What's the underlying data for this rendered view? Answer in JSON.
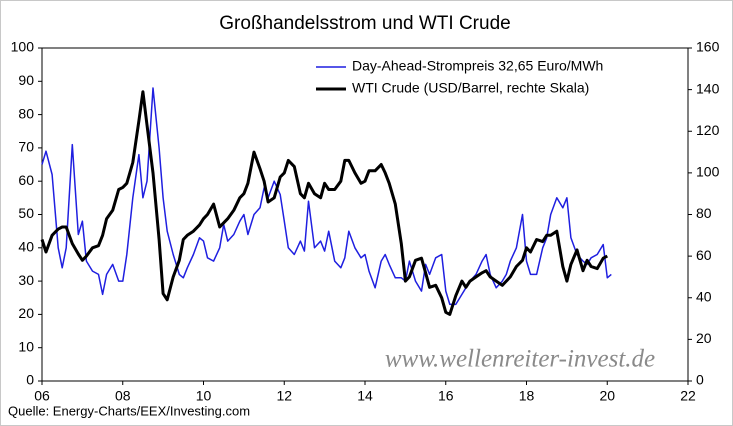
{
  "chart_data": {
    "type": "line",
    "title": "Großhandelsstrom und WTI Crude",
    "source": "Quelle: Energy-Charts/EEX/Investing.com",
    "watermark": "www.wellenreiter-invest.de",
    "xlim": [
      2006,
      2022
    ],
    "xticks": [
      {
        "value": 2006,
        "label": "06"
      },
      {
        "value": 2008,
        "label": "08"
      },
      {
        "value": 2010,
        "label": "10"
      },
      {
        "value": 2012,
        "label": "12"
      },
      {
        "value": 2014,
        "label": "14"
      },
      {
        "value": 2016,
        "label": "16"
      },
      {
        "value": 2018,
        "label": "18"
      },
      {
        "value": 2020,
        "label": "20"
      },
      {
        "value": 2022,
        "label": "22"
      }
    ],
    "ylim": [
      0,
      100
    ],
    "yticks": [
      0,
      10,
      20,
      30,
      40,
      50,
      60,
      70,
      80,
      90,
      100
    ],
    "y2lim": [
      0,
      160
    ],
    "y2ticks": [
      0,
      20,
      40,
      60,
      80,
      100,
      120,
      140,
      160
    ],
    "grid": false,
    "legend": "top-right",
    "series": [
      {
        "name": "Day-Ahead-Strompreis 32,65 Euro/MWh",
        "color": "#1f1fe0",
        "width": 1.5,
        "x": [
          2006.0,
          2006.1,
          2006.25,
          2006.4,
          2006.5,
          2006.6,
          2006.75,
          2006.9,
          2007.0,
          2007.1,
          2007.25,
          2007.4,
          2007.5,
          2007.6,
          2007.75,
          2007.9,
          2008.0,
          2008.1,
          2008.25,
          2008.4,
          2008.5,
          2008.6,
          2008.75,
          2008.9,
          2009.0,
          2009.1,
          2009.25,
          2009.4,
          2009.5,
          2009.6,
          2009.75,
          2009.9,
          2010.0,
          2010.1,
          2010.25,
          2010.4,
          2010.5,
          2010.6,
          2010.75,
          2010.9,
          2011.0,
          2011.1,
          2011.25,
          2011.4,
          2011.5,
          2011.6,
          2011.75,
          2011.9,
          2012.0,
          2012.1,
          2012.25,
          2012.4,
          2012.5,
          2012.6,
          2012.75,
          2012.9,
          2013.0,
          2013.1,
          2013.25,
          2013.4,
          2013.5,
          2013.6,
          2013.75,
          2013.9,
          2014.0,
          2014.1,
          2014.25,
          2014.4,
          2014.5,
          2014.6,
          2014.75,
          2014.9,
          2015.0,
          2015.1,
          2015.25,
          2015.4,
          2015.5,
          2015.6,
          2015.75,
          2015.9,
          2016.0,
          2016.1,
          2016.25,
          2016.4,
          2016.5,
          2016.6,
          2016.75,
          2016.9,
          2017.0,
          2017.1,
          2017.25,
          2017.4,
          2017.5,
          2017.6,
          2017.75,
          2017.9,
          2018.0,
          2018.1,
          2018.25,
          2018.4,
          2018.5,
          2018.6,
          2018.75,
          2018.9,
          2019.0,
          2019.1,
          2019.25,
          2019.4,
          2019.5,
          2019.6,
          2019.75,
          2019.9,
          2020.0,
          2020.1
        ],
        "values": [
          65,
          69,
          62,
          40,
          34,
          40,
          71,
          44,
          48,
          36,
          33,
          32,
          26,
          32,
          35,
          30,
          30,
          38,
          55,
          68,
          55,
          60,
          88,
          70,
          55,
          45,
          38,
          32,
          31,
          34,
          38,
          43,
          42,
          37,
          36,
          40,
          47,
          42,
          44,
          48,
          50,
          44,
          50,
          52,
          58,
          55,
          60,
          56,
          48,
          40,
          38,
          42,
          39,
          54,
          40,
          42,
          39,
          45,
          36,
          34,
          37,
          45,
          40,
          37,
          38,
          33,
          28,
          36,
          38,
          35,
          31,
          31,
          30,
          36,
          30,
          27,
          35,
          32,
          37,
          38,
          27,
          23,
          23,
          26,
          28,
          30,
          32,
          36,
          38,
          32,
          28,
          30,
          32,
          36,
          40,
          50,
          36,
          32,
          32,
          40,
          43,
          50,
          55,
          52,
          55,
          43,
          38,
          36,
          35,
          37,
          38,
          41,
          31,
          32
        ]
      },
      {
        "name": "WTI Crude (USD/Barrel, rechte Skala)",
        "color": "#000000",
        "width": 3,
        "axis": "y2",
        "x": [
          2006.0,
          2006.1,
          2006.25,
          2006.4,
          2006.5,
          2006.6,
          2006.75,
          2006.9,
          2007.0,
          2007.1,
          2007.25,
          2007.4,
          2007.5,
          2007.6,
          2007.75,
          2007.9,
          2008.0,
          2008.1,
          2008.25,
          2008.4,
          2008.5,
          2008.6,
          2008.75,
          2008.9,
          2009.0,
          2009.1,
          2009.25,
          2009.4,
          2009.5,
          2009.6,
          2009.75,
          2009.9,
          2010.0,
          2010.1,
          2010.25,
          2010.4,
          2010.5,
          2010.6,
          2010.75,
          2010.9,
          2011.0,
          2011.1,
          2011.25,
          2011.4,
          2011.5,
          2011.6,
          2011.75,
          2011.9,
          2012.0,
          2012.1,
          2012.25,
          2012.4,
          2012.5,
          2012.6,
          2012.75,
          2012.9,
          2013.0,
          2013.1,
          2013.25,
          2013.4,
          2013.5,
          2013.6,
          2013.75,
          2013.9,
          2014.0,
          2014.1,
          2014.25,
          2014.4,
          2014.5,
          2014.6,
          2014.75,
          2014.9,
          2015.0,
          2015.1,
          2015.25,
          2015.4,
          2015.5,
          2015.6,
          2015.75,
          2015.9,
          2016.0,
          2016.1,
          2016.25,
          2016.4,
          2016.5,
          2016.6,
          2016.75,
          2016.9,
          2017.0,
          2017.1,
          2017.25,
          2017.4,
          2017.5,
          2017.6,
          2017.75,
          2017.9,
          2018.0,
          2018.1,
          2018.25,
          2018.4,
          2018.5,
          2018.6,
          2018.75,
          2018.9,
          2019.0,
          2019.1,
          2019.25,
          2019.4,
          2019.5,
          2019.6,
          2019.75,
          2019.9,
          2020.0
        ],
        "values": [
          68,
          62,
          70,
          73,
          74,
          74,
          66,
          61,
          58,
          60,
          64,
          65,
          70,
          78,
          82,
          92,
          93,
          95,
          105,
          125,
          139,
          123,
          100,
          68,
          42,
          39,
          50,
          58,
          68,
          70,
          72,
          75,
          78,
          80,
          85,
          74,
          76,
          78,
          82,
          88,
          90,
          95,
          110,
          102,
          96,
          86,
          88,
          98,
          100,
          106,
          103,
          90,
          88,
          95,
          90,
          88,
          95,
          92,
          92,
          96,
          106,
          106,
          100,
          95,
          96,
          101,
          101,
          104,
          100,
          95,
          85,
          66,
          48,
          50,
          58,
          59,
          52,
          45,
          46,
          40,
          33,
          32,
          41,
          48,
          45,
          48,
          50,
          52,
          53,
          50,
          48,
          46,
          48,
          50,
          55,
          58,
          64,
          62,
          68,
          67,
          70,
          70,
          72,
          55,
          48,
          56,
          63,
          53,
          58,
          55,
          54,
          59,
          60
        ]
      }
    ]
  }
}
